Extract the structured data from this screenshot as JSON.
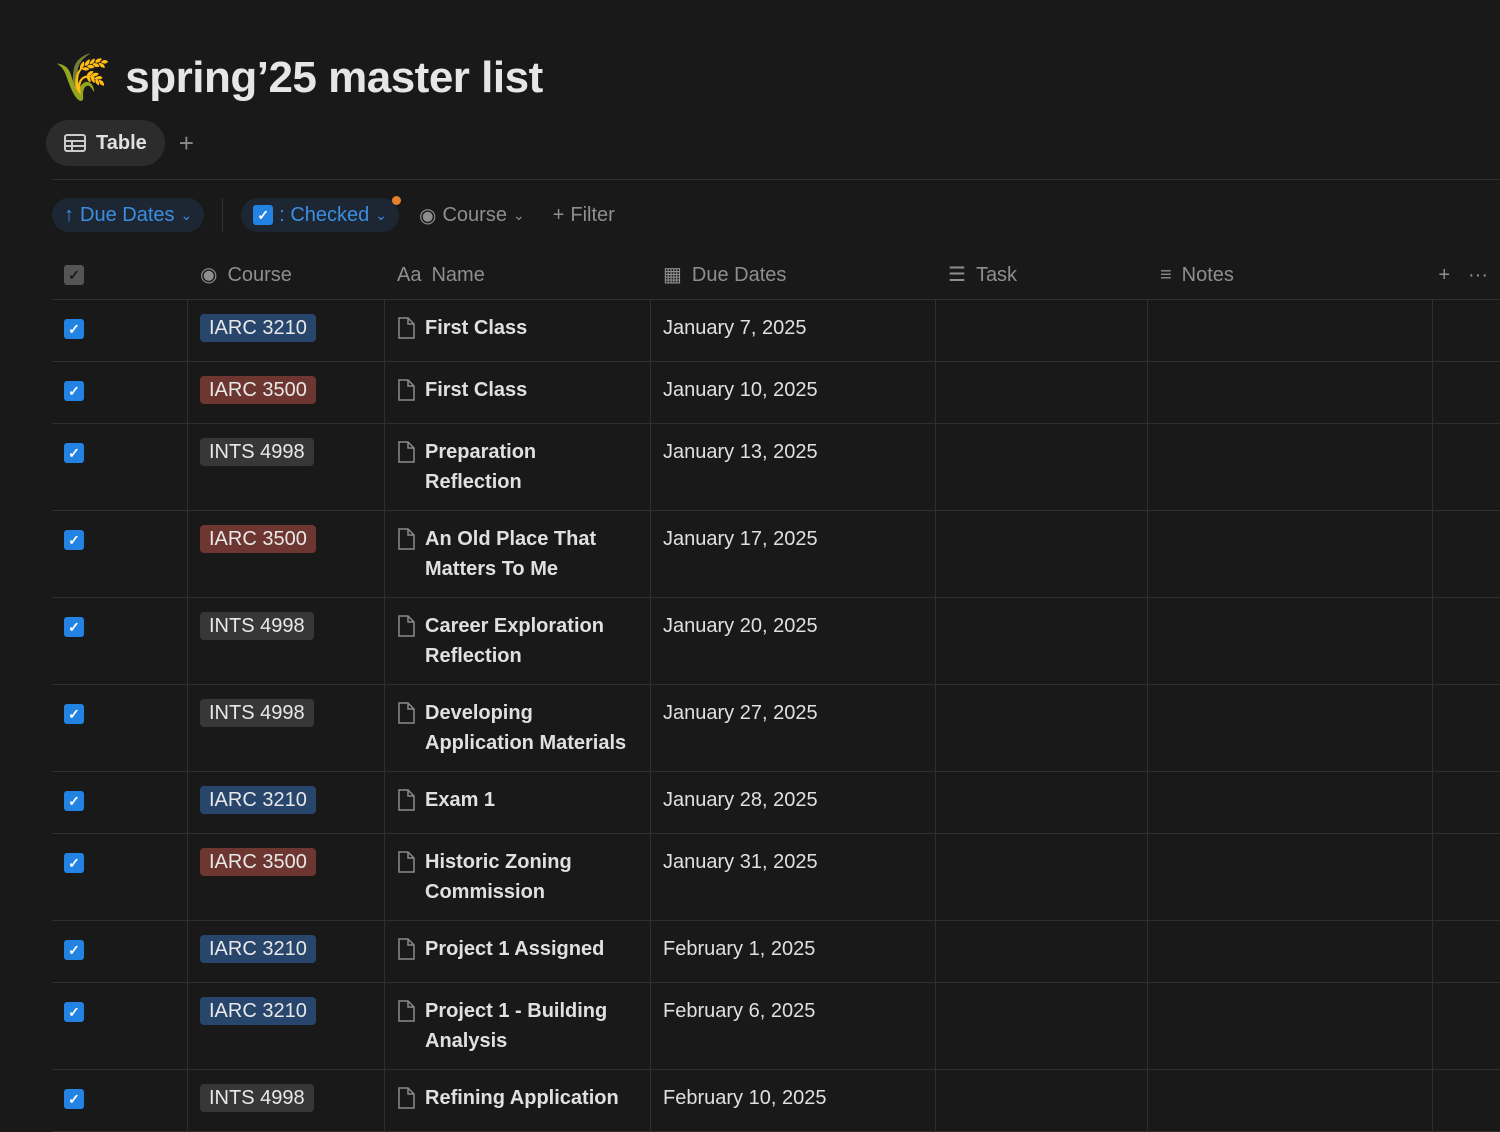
{
  "page": {
    "icon": "🌾",
    "title": "spring’25 master list"
  },
  "views": {
    "active": "Table",
    "add": "+"
  },
  "filters": {
    "sort": "Due Dates",
    "checked": ": Checked",
    "course": "Course",
    "add_filter": "Filter"
  },
  "columns": {
    "course": "Course",
    "name": "Name",
    "due": "Due Dates",
    "task": "Task",
    "notes": "Notes"
  },
  "tag_colors": {
    "IARC 3210": "#28456c",
    "IARC 3500": "#6e3630",
    "INTS 4998": "#373737"
  },
  "rows": [
    {
      "course": "IARC 3210",
      "name": "First Class",
      "due": "January 7, 2025",
      "checked": true
    },
    {
      "course": "IARC 3500",
      "name": "First Class",
      "due": "January 10, 2025",
      "checked": true
    },
    {
      "course": "INTS 4998",
      "name": "Preparation Reflection",
      "due": "January 13, 2025",
      "checked": true
    },
    {
      "course": "IARC 3500",
      "name": "An Old Place That Matters To Me",
      "due": "January 17, 2025",
      "checked": true
    },
    {
      "course": "INTS 4998",
      "name": "Career Exploration Reflection",
      "due": "January 20, 2025",
      "checked": true
    },
    {
      "course": "INTS 4998",
      "name": "Developing Application Materials",
      "due": "January 27, 2025",
      "checked": true
    },
    {
      "course": "IARC 3210",
      "name": "Exam 1",
      "due": "January 28, 2025",
      "checked": true
    },
    {
      "course": "IARC 3500",
      "name": "Historic Zoning Commission",
      "due": "January 31, 2025",
      "checked": true
    },
    {
      "course": "IARC 3210",
      "name": "Project 1 Assigned",
      "due": "February 1, 2025",
      "checked": true
    },
    {
      "course": "IARC 3210",
      "name": "Project 1 - Building Analysis",
      "due": "February 6, 2025",
      "checked": true
    },
    {
      "course": "INTS 4998",
      "name": "Refining Application",
      "due": "February 10, 2025",
      "checked": true
    }
  ]
}
